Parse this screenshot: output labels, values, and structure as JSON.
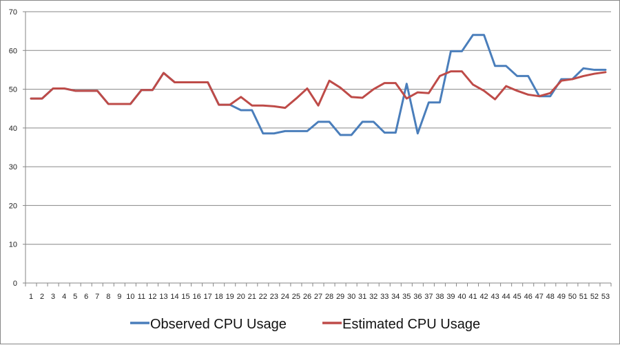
{
  "chart_data": {
    "type": "line",
    "title": "",
    "xlabel": "",
    "ylabel": "",
    "x": [
      1,
      2,
      3,
      4,
      5,
      6,
      7,
      8,
      9,
      10,
      11,
      12,
      13,
      14,
      15,
      16,
      17,
      18,
      19,
      20,
      21,
      22,
      23,
      24,
      25,
      26,
      27,
      28,
      29,
      30,
      31,
      32,
      33,
      34,
      35,
      36,
      37,
      38,
      39,
      40,
      41,
      42,
      43,
      44,
      45,
      46,
      47,
      48,
      49,
      50,
      51,
      52,
      53
    ],
    "ylim": [
      0,
      70
    ],
    "yticks": [
      0,
      10,
      20,
      30,
      40,
      50,
      60,
      70
    ],
    "grid": true,
    "legend_position": "bottom",
    "series": [
      {
        "name": "Observed CPU Usage",
        "color": "#4a7ebb",
        "values": [
          47.6,
          47.6,
          50.2,
          50.2,
          49.6,
          49.6,
          49.6,
          46.2,
          46.2,
          46.2,
          49.8,
          49.8,
          54.2,
          51.8,
          51.8,
          51.8,
          51.8,
          46.0,
          46.0,
          44.6,
          44.6,
          38.6,
          38.6,
          39.2,
          39.2,
          39.2,
          41.6,
          41.6,
          38.2,
          38.2,
          41.6,
          41.6,
          38.8,
          38.8,
          51.4,
          38.6,
          46.6,
          46.6,
          59.8,
          59.8,
          64.0,
          64.0,
          56.0,
          56.0,
          53.4,
          53.4,
          48.2,
          48.2,
          52.6,
          52.6,
          55.4,
          55.0,
          55.0
        ]
      },
      {
        "name": "Estimated CPU Usage",
        "color": "#be4b48",
        "values": [
          47.6,
          47.6,
          50.2,
          50.2,
          49.6,
          49.6,
          49.6,
          46.2,
          46.2,
          46.2,
          49.8,
          49.8,
          54.2,
          51.8,
          51.8,
          51.8,
          51.8,
          46.0,
          46.0,
          48.0,
          45.8,
          45.8,
          45.6,
          45.2,
          47.6,
          50.2,
          45.8,
          52.2,
          50.4,
          48.0,
          47.8,
          50.0,
          51.6,
          51.6,
          47.6,
          49.2,
          49.0,
          53.4,
          54.6,
          54.6,
          51.2,
          49.6,
          47.4,
          50.8,
          49.6,
          48.6,
          48.2,
          49.0,
          52.2,
          52.6,
          53.4,
          54.0,
          54.4
        ]
      }
    ]
  }
}
